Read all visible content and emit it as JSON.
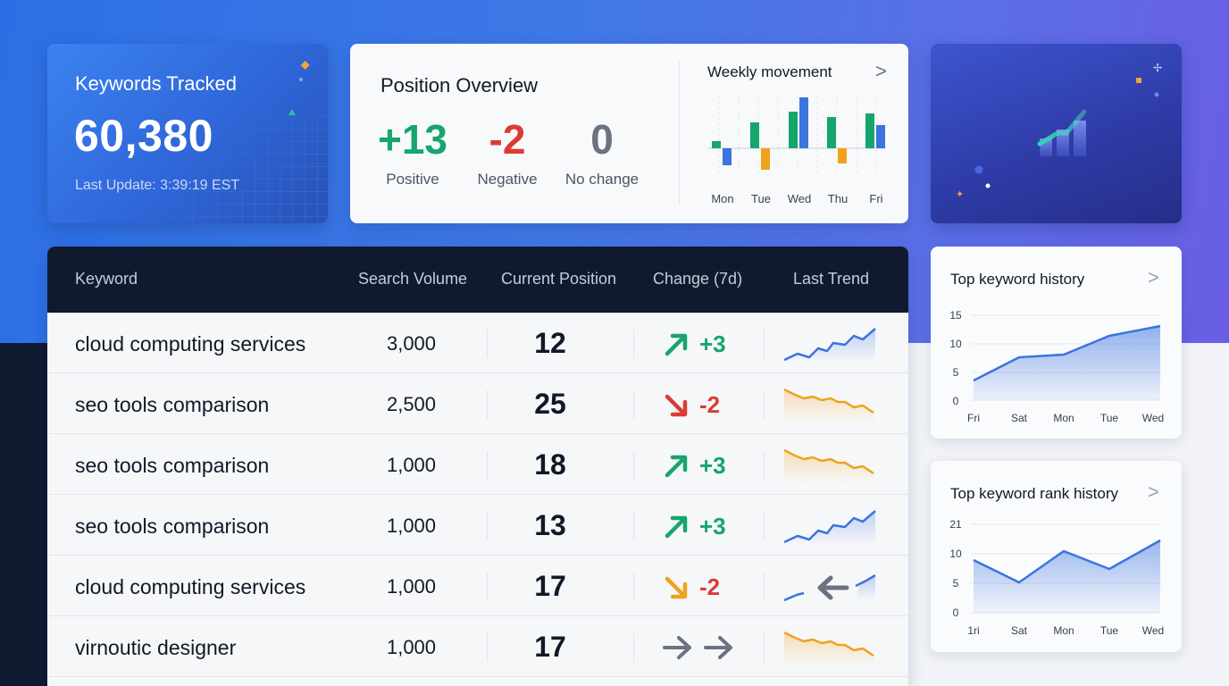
{
  "keywords_tracked": {
    "title": "Keywords Tracked",
    "value": "60,380",
    "last_update": "Last Update: 3:39:19 EST"
  },
  "position_overview": {
    "title": "Position Overview",
    "stats": [
      {
        "value": "+13",
        "label": "Positive",
        "color": "#16a56c"
      },
      {
        "value": "-2",
        "label": "Negative",
        "color": "#dc3b34"
      },
      {
        "value": "0",
        "label": "No change",
        "color": "#6b7280"
      }
    ],
    "weekly_movement": {
      "title": "Weekly movement",
      "chevron": ">",
      "days": [
        "Mon",
        "Tue",
        "Wed",
        "Thu",
        "Fri"
      ]
    }
  },
  "table": {
    "columns": [
      "Keyword",
      "Search Volume",
      "Current Position",
      "Change (7d)",
      "Last Trend"
    ],
    "rows": [
      {
        "keyword": "cloud computing services",
        "volume": "3,000",
        "position": "12",
        "change": "+3",
        "direction": "up",
        "trend": "up"
      },
      {
        "keyword": "seo tools comparison",
        "volume": "2,500",
        "position": "25",
        "change": "-2",
        "direction": "down",
        "trend": "down"
      },
      {
        "keyword": "seo tools comparison",
        "volume": "1,000",
        "position": "18",
        "change": "+3",
        "direction": "up",
        "trend": "down"
      },
      {
        "keyword": "seo tools comparison",
        "volume": "1,000",
        "position": "13",
        "change": "+3",
        "direction": "up",
        "trend": "up"
      },
      {
        "keyword": "cloud computing services",
        "volume": "1,000",
        "position": "17",
        "change": "-2",
        "direction": "down-orange",
        "trend": "mixed"
      },
      {
        "keyword": "virnoutic designer",
        "volume": "1,000",
        "position": "17",
        "change": "",
        "direction": "neutral",
        "trend": "down"
      }
    ]
  },
  "top_keyword_history": {
    "title": "Top keyword history",
    "chevron": ">",
    "y_ticks": [
      "15",
      "10",
      "5",
      "0"
    ],
    "x_labels": [
      "Fri",
      "Sat",
      "Mon",
      "Tue",
      "Wed"
    ]
  },
  "top_keyword_rank_history": {
    "title": "Top keyword rank history",
    "chevron": ">",
    "y_ticks": [
      "21",
      "10",
      "5",
      "0"
    ],
    "x_labels": [
      "1ri",
      "Sat",
      "Mon",
      "Tue",
      "Wed"
    ]
  },
  "colors": {
    "green": "#16a56c",
    "red": "#dc3b34",
    "orange": "#f0a21c",
    "blue": "#3b74e0",
    "gray": "#6b7280"
  }
}
